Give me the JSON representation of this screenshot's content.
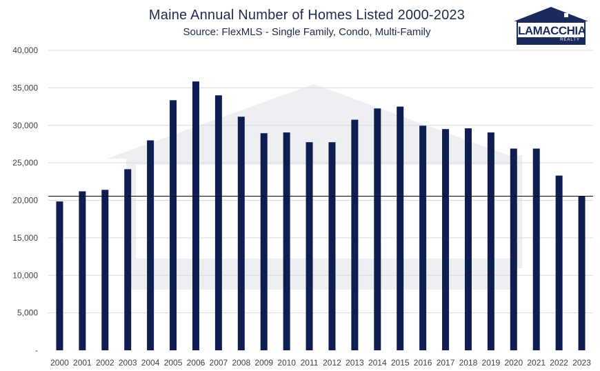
{
  "chart_data": {
    "type": "bar",
    "title": "Maine Annual Number of Homes Listed 2000-2023",
    "subtitle": "Source: FlexMLS - Single Family, Condo, Multi-Family",
    "xlabel": "",
    "ylabel": "",
    "categories": [
      "2000",
      "2001",
      "2002",
      "2003",
      "2004",
      "2005",
      "2006",
      "2007",
      "2008",
      "2009",
      "2010",
      "2011",
      "2012",
      "2013",
      "2014",
      "2015",
      "2016",
      "2017",
      "2018",
      "2019",
      "2020",
      "2021",
      "2022",
      "2023"
    ],
    "values": [
      19850,
      21200,
      21400,
      24150,
      28000,
      33350,
      35850,
      34000,
      31150,
      28950,
      29050,
      27750,
      27750,
      30750,
      32250,
      32500,
      29950,
      29500,
      29600,
      29050,
      26900,
      26900,
      23300,
      20550
    ],
    "ylim": [
      0,
      40000
    ],
    "yticks": [
      "-",
      "5,000",
      "10,000",
      "15,000",
      "20,000",
      "25,000",
      "30,000",
      "35,000",
      "40,000"
    ],
    "reference_line": 20550,
    "grid": true,
    "bar_color": "#0e1e52",
    "gridline_color": "#d9d9d9"
  },
  "logo": {
    "name": "LAMACCHIA",
    "sub": "REALTY",
    "color": "#1b2a5a"
  }
}
